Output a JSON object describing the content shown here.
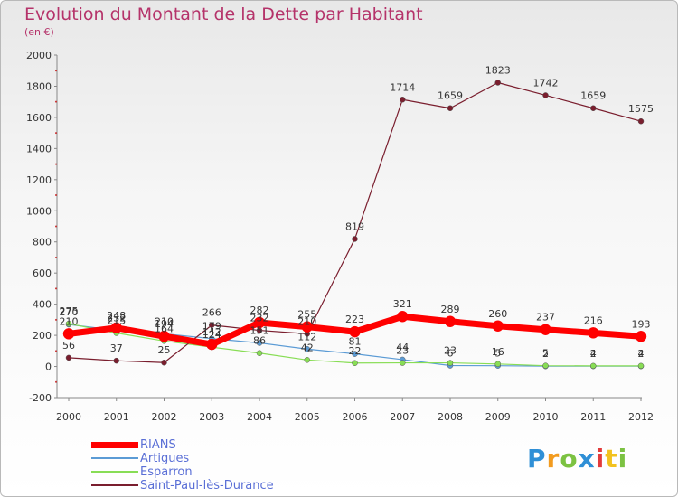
{
  "chart_data": {
    "type": "line",
    "title": "Evolution du Montant de la Dette par Habitant",
    "subtitle": "(en €)",
    "x": [
      "2000",
      "2001",
      "2002",
      "2003",
      "2004",
      "2005",
      "2006",
      "2007",
      "2008",
      "2009",
      "2010",
      "2011",
      "2012"
    ],
    "ylim": [
      -200,
      2000
    ],
    "yticks": [
      -200,
      0,
      200,
      400,
      600,
      800,
      1000,
      1200,
      1400,
      1600,
      1800,
      2000
    ],
    "series": [
      {
        "name": "RIANS",
        "color": "#ff0000",
        "values": [
          210,
          248,
          194,
          142,
          282,
          255,
          223,
          321,
          289,
          260,
          237,
          216,
          193
        ]
      },
      {
        "name": "Artigues",
        "color": "#5b9bd5",
        "values": [
          270,
          232,
          210,
          179,
          151,
          112,
          81,
          44,
          6,
          5,
          2,
          2,
          2
        ]
      },
      {
        "name": "Esparron",
        "color": "#88dd55",
        "values": [
          275,
          215,
          164,
          124,
          86,
          42,
          22,
          23,
          23,
          16,
          5,
          4,
          4
        ]
      },
      {
        "name": "Saint-Paul-lès-Durance",
        "color": "#7a1e2e",
        "values": [
          56,
          37,
          25,
          266,
          232,
          210,
          819,
          1714,
          1659,
          1823,
          1742,
          1659,
          1575
        ]
      }
    ],
    "data_labels": {
      "RIANS": [
        "210",
        "248",
        "194",
        "142",
        "282",
        "255",
        "223",
        "321",
        "289",
        "260",
        "237",
        "216",
        "193"
      ],
      "Artigues": [
        "270",
        "232",
        "210",
        "179",
        "151",
        "112",
        "81",
        "44",
        "6",
        "5",
        "2",
        "2",
        "2"
      ],
      "Esparron": [
        "275",
        "215",
        "164",
        "124",
        "86",
        "42",
        "22",
        "23",
        "23",
        "16",
        "5",
        "4",
        "4"
      ],
      "Saint-Paul-lès-Durance": [
        "56",
        "37",
        "25",
        "266",
        "232",
        "210",
        "819",
        "1714",
        "1659",
        "1823",
        "1742",
        "1659",
        "1575"
      ]
    },
    "grid": false,
    "legend_placement": "bottom-left"
  },
  "logo": {
    "text": "Proxiti",
    "letters": [
      "P",
      "r",
      "o",
      "x",
      "i",
      "t",
      "i"
    ],
    "colors": [
      "#2f8fd6",
      "#f29b1f",
      "#7cc242",
      "#2f8fd6",
      "#e23b3b",
      "#f2c21f",
      "#7cc242"
    ]
  }
}
